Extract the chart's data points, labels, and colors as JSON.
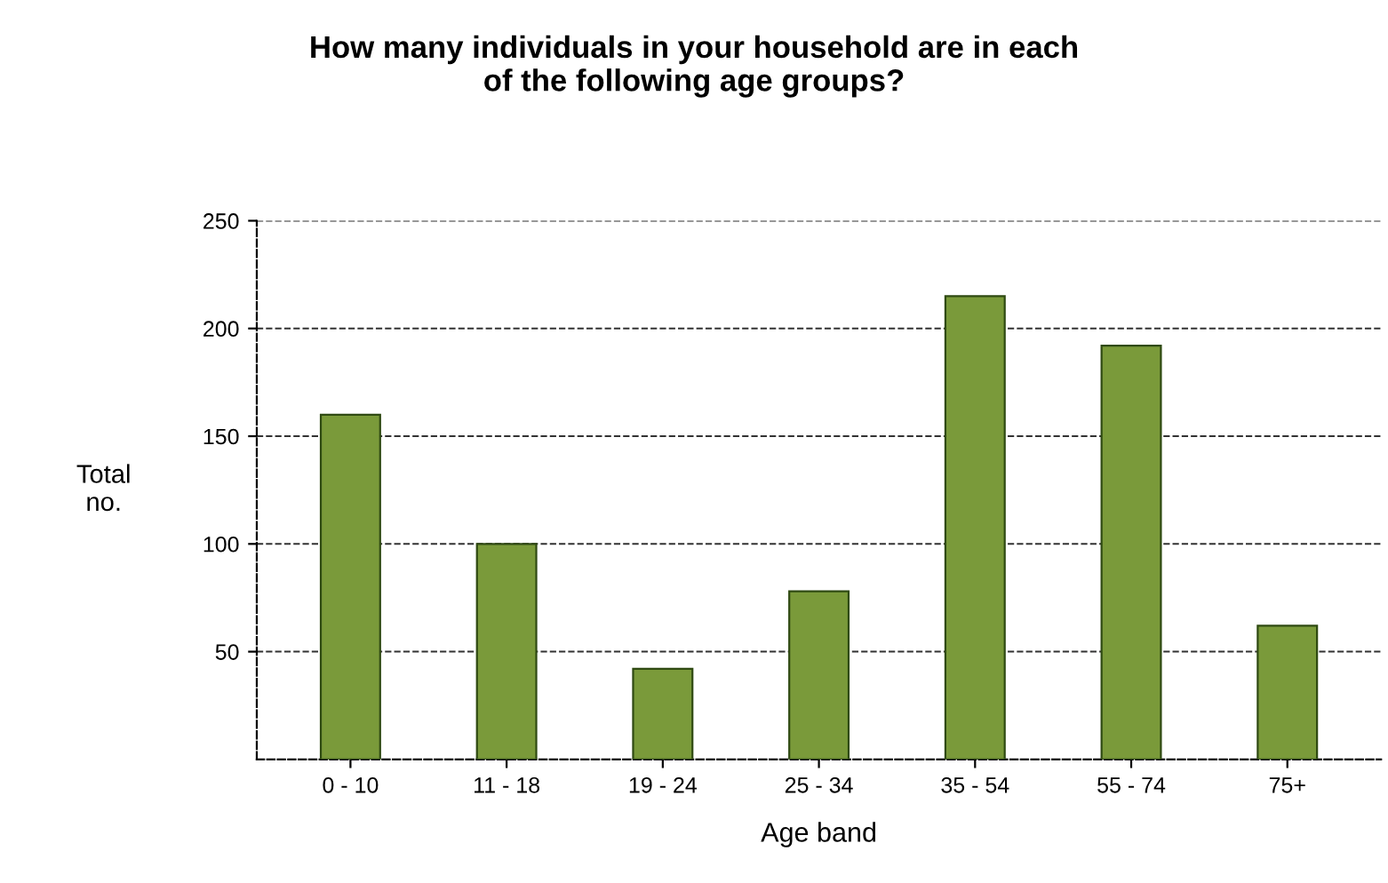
{
  "chart_data": {
    "type": "bar",
    "title": "How many individuals in your household are in each\nof the following age groups?",
    "xlabel": "Age band",
    "ylabel": "Total\nno.",
    "categories": [
      "0 - 10",
      "11 - 18",
      "19 - 24",
      "25 - 34",
      "35 - 54",
      "55 - 74",
      "75+"
    ],
    "values": [
      160,
      100,
      42,
      78,
      215,
      192,
      62
    ],
    "color": "#7a9a3a",
    "ylim": [
      0,
      250
    ],
    "yticks": [
      50,
      100,
      150,
      200,
      250
    ],
    "grid": "y"
  }
}
